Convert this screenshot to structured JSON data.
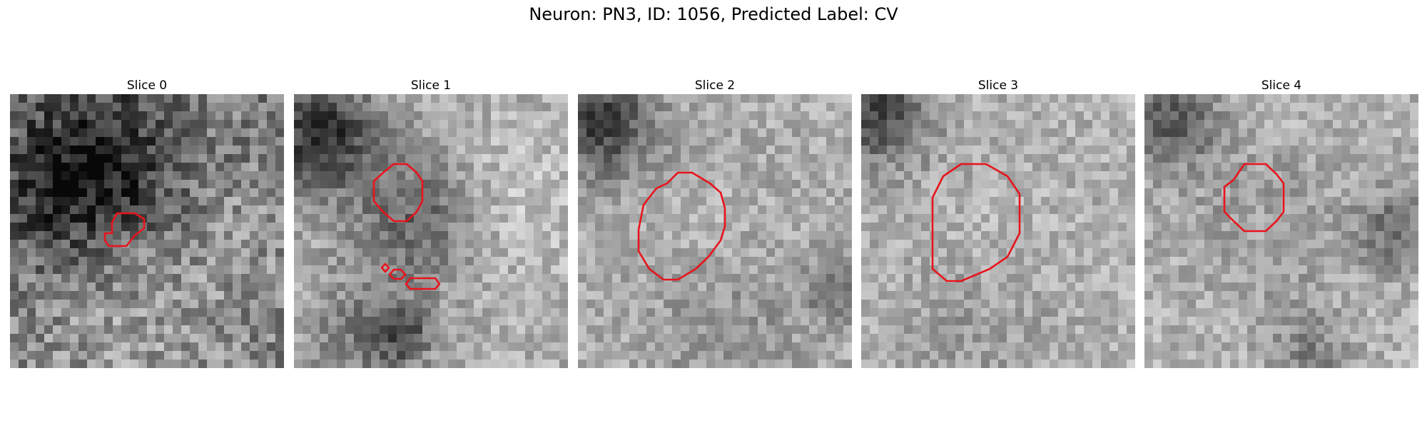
{
  "figure": {
    "title": "Neuron: PN3, ID: 1056, Predicted Label: CV"
  },
  "colors": {
    "contour": "#e8141c",
    "background": "#ffffff"
  },
  "panels": [
    {
      "title": "Slice 0"
    },
    {
      "title": "Slice 1"
    },
    {
      "title": "Slice 2"
    },
    {
      "title": "Slice 3"
    },
    {
      "title": "Slice 4"
    }
  ]
}
